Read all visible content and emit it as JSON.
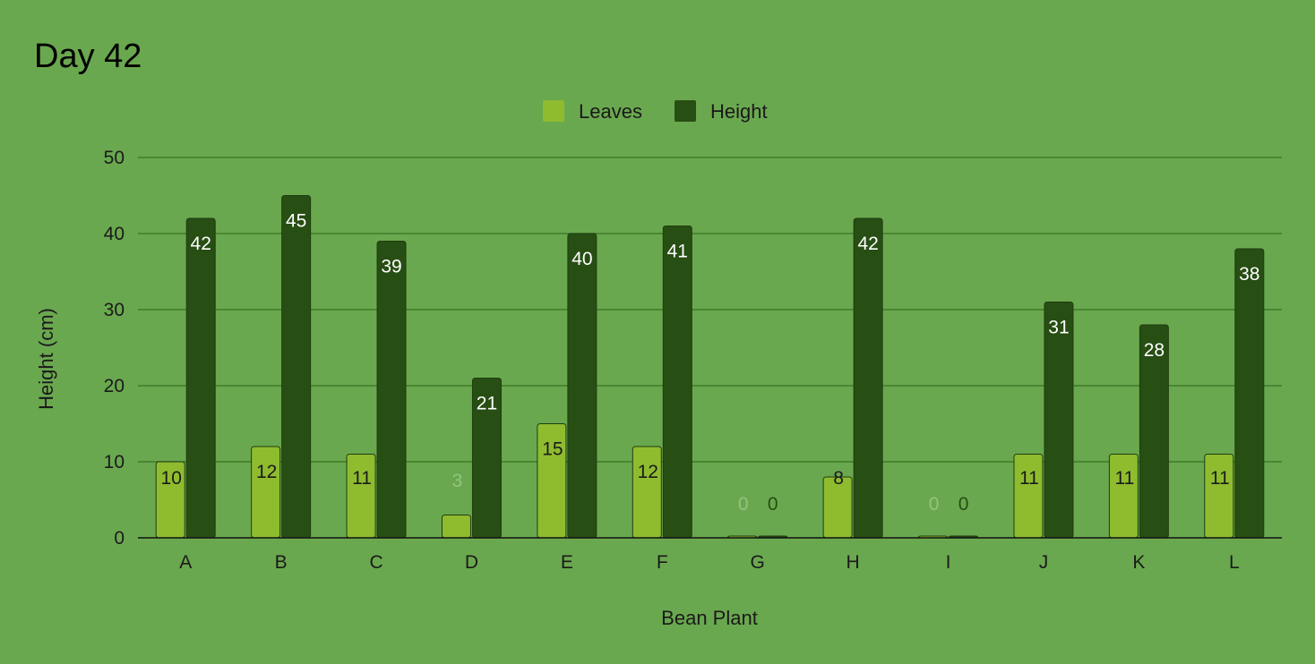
{
  "colors": {
    "background": "#6aa84f",
    "leaves": "#8fbc2f",
    "height": "#274e13",
    "gridline": "#3f7a2a",
    "baseline": "#111111",
    "label_on_height": "#ffffff",
    "label_on_leaves": "#1a1a1a",
    "label_leaves_outside": "#93c47d",
    "label_height_outside": "#274e13"
  },
  "chart_data": {
    "type": "bar",
    "title": "Day 42",
    "xlabel": "Bean Plant",
    "ylabel": "Height (cm)",
    "ylim": [
      0,
      50
    ],
    "yticks": [
      0,
      10,
      20,
      30,
      40,
      50
    ],
    "grid": true,
    "legend": "top-center",
    "categories": [
      "A",
      "B",
      "C",
      "D",
      "E",
      "F",
      "G",
      "H",
      "I",
      "J",
      "K",
      "L"
    ],
    "series": [
      {
        "name": "Leaves",
        "values": [
          10,
          12,
          11,
          3,
          15,
          12,
          0,
          8,
          0,
          11,
          11,
          11
        ]
      },
      {
        "name": "Height",
        "values": [
          42,
          45,
          39,
          21,
          40,
          41,
          0,
          42,
          0,
          31,
          28,
          38
        ]
      }
    ]
  }
}
